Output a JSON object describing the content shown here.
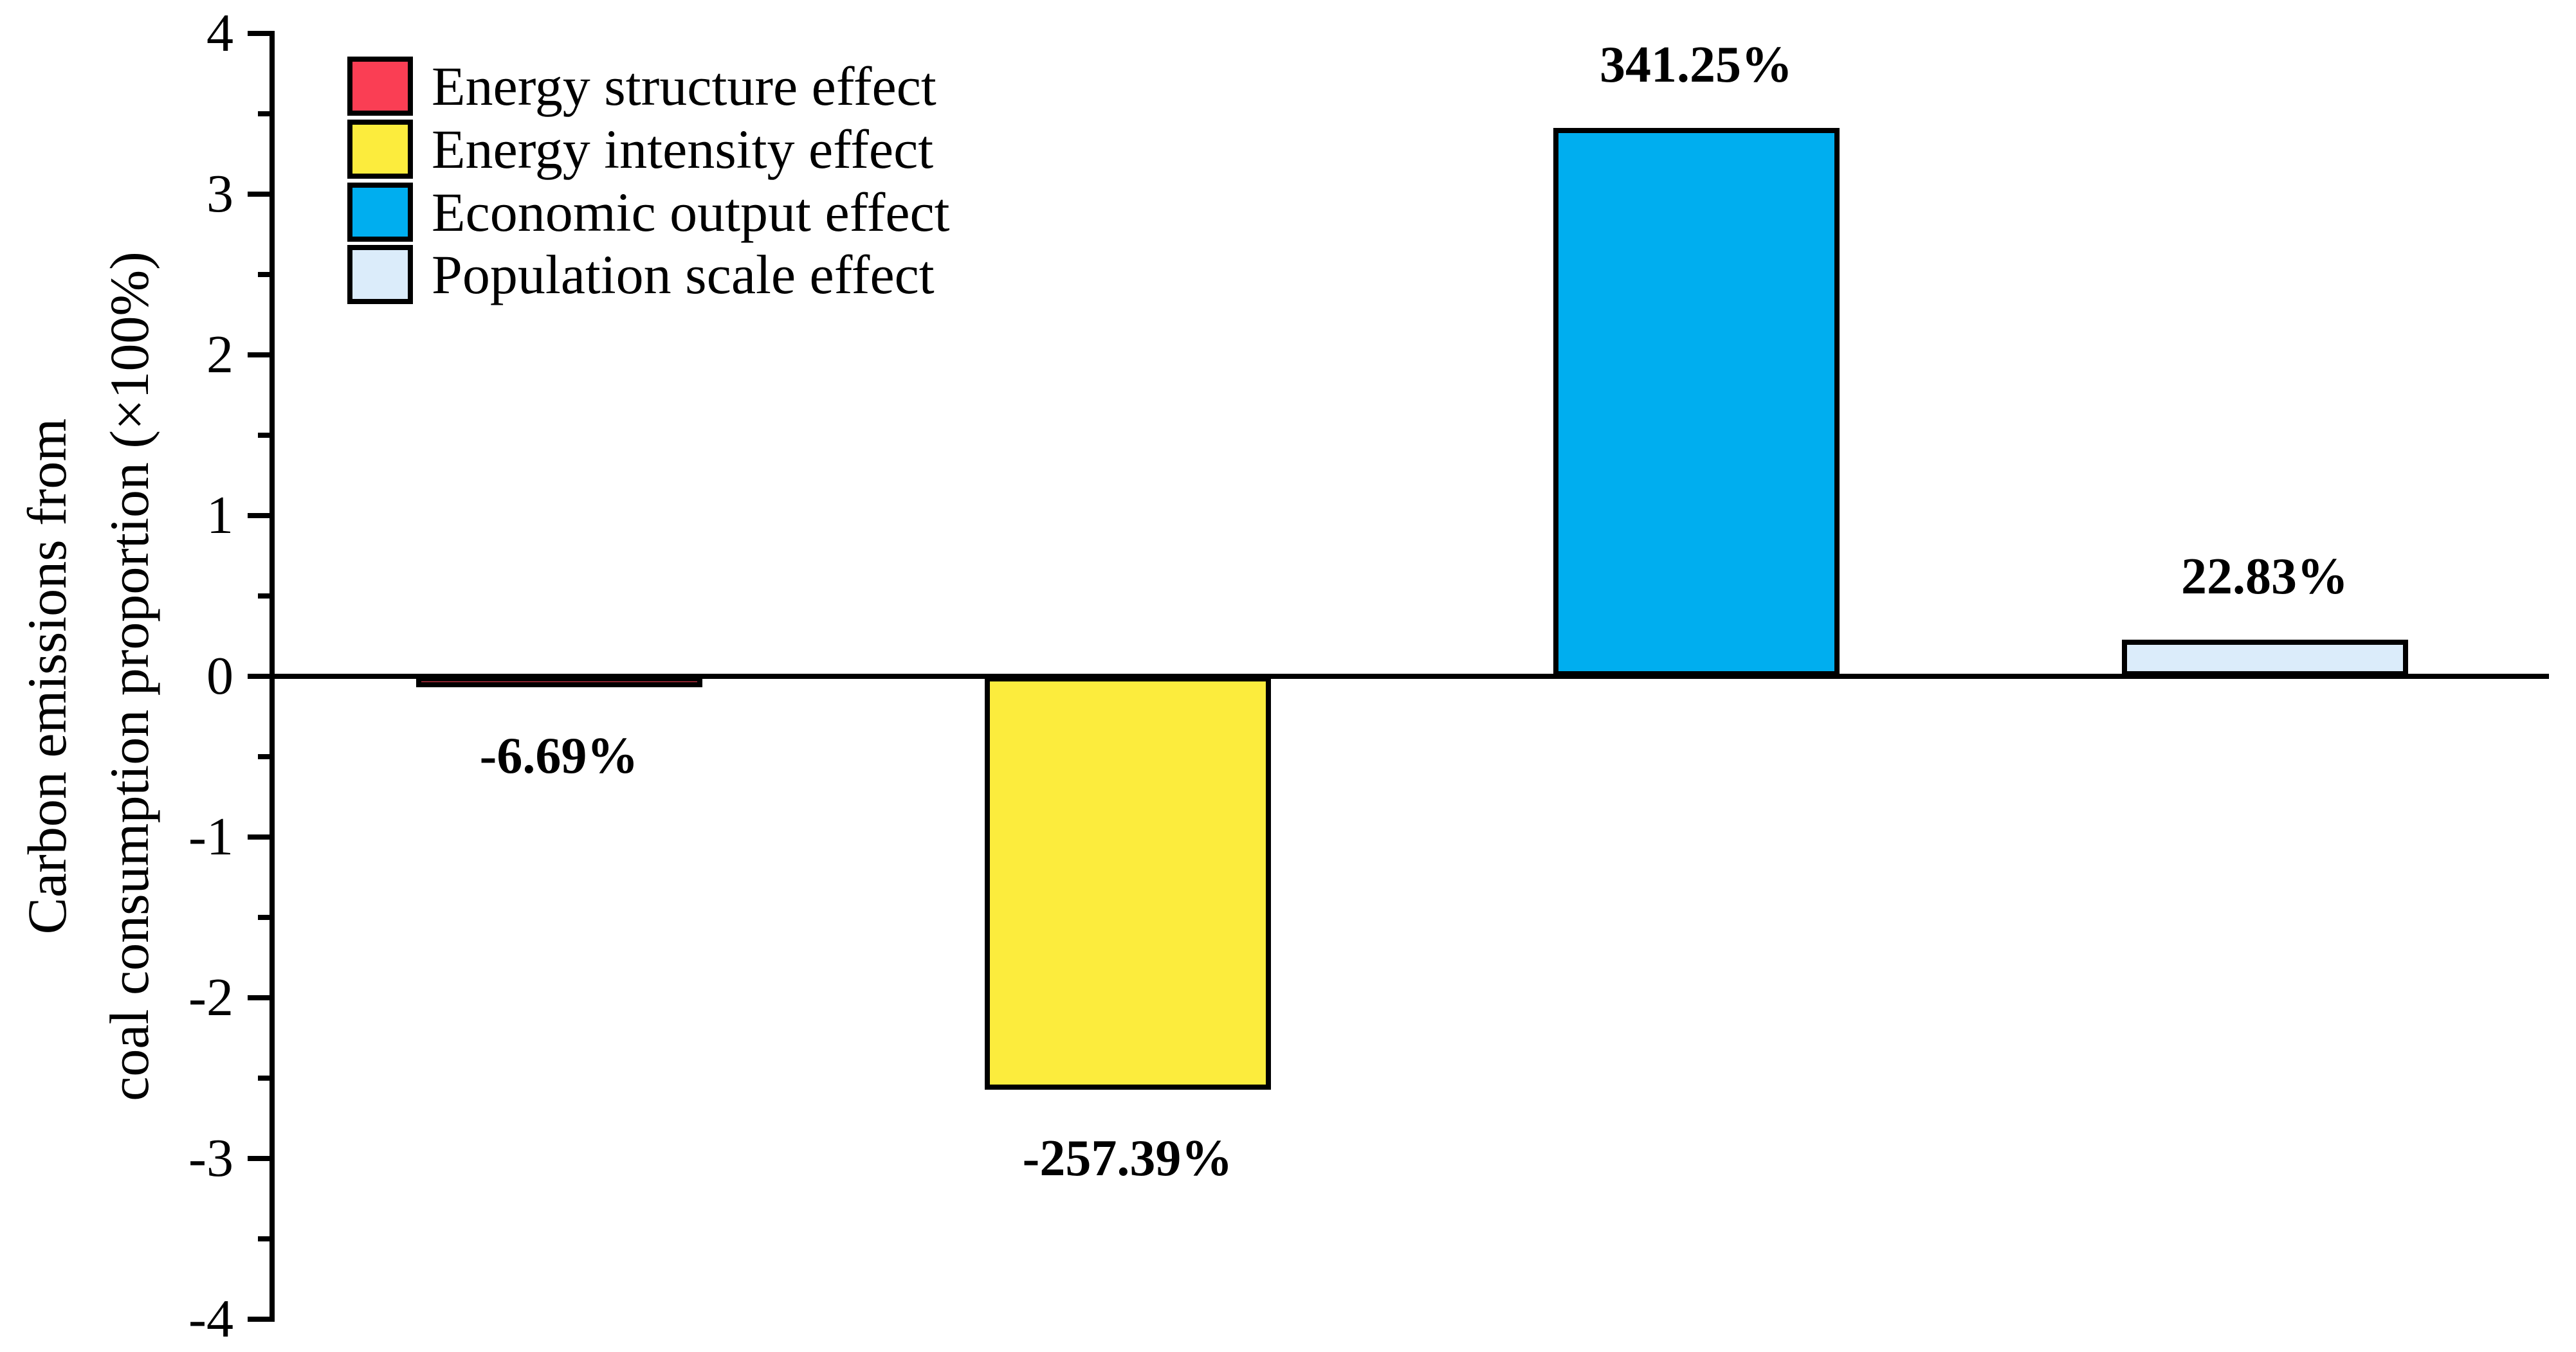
{
  "chart_data": {
    "type": "bar",
    "title": "",
    "ylabel_lines": [
      "Carbon emissions from",
      "coal consumption proportion (×100%)"
    ],
    "ylim": [
      -4,
      4
    ],
    "yticks": [
      {
        "v": 4,
        "label": "4"
      },
      {
        "v": 3,
        "label": "3"
      },
      {
        "v": 2,
        "label": "2"
      },
      {
        "v": 1,
        "label": "1"
      },
      {
        "v": 0,
        "label": "0"
      },
      {
        "v": -1,
        "label": "-1"
      },
      {
        "v": -2,
        "label": "-2"
      },
      {
        "v": -3,
        "label": "-3"
      },
      {
        "v": -4,
        "label": "-4"
      }
    ],
    "yticks_minor": [
      3.5,
      2.5,
      1.5,
      0.5,
      -0.5,
      -1.5,
      -2.5,
      -3.5
    ],
    "grid": "off",
    "legend_position": "top-left",
    "categories": [
      "Energy structure effect",
      "Energy intensity effect",
      "Economic output effect",
      "Population scale effect"
    ],
    "values": [
      -0.0669,
      -2.5739,
      3.4125,
      0.2283
    ],
    "bar_labels": [
      "-6.69%",
      "-257.39%",
      "341.25%",
      "22.83%"
    ],
    "colors": [
      "#FA3E54",
      "#FCEC3D",
      "#00AEEF",
      "#DBECFA"
    ],
    "legend": [
      {
        "label": "Energy structure effect",
        "color": "#FA3E54"
      },
      {
        "label": "Energy intensity effect",
        "color": "#FCEC3D"
      },
      {
        "label": "Economic output effect",
        "color": "#00AEEF"
      },
      {
        "label": "Population scale effect",
        "color": "#DBECFA"
      }
    ],
    "axis_color": "#000000"
  }
}
